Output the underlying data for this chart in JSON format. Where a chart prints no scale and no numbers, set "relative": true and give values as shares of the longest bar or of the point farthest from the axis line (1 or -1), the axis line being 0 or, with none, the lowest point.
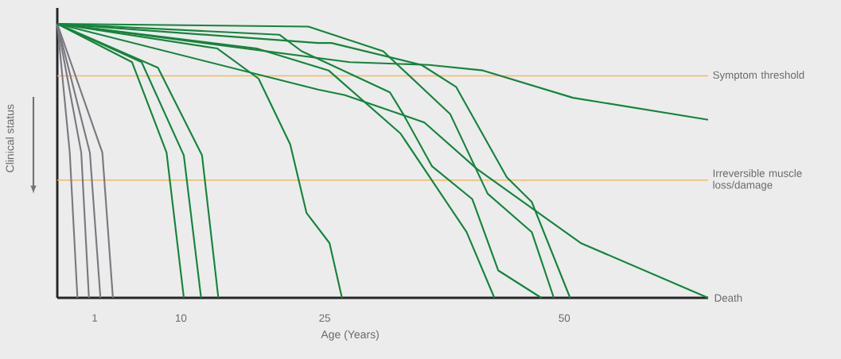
{
  "chart_data": {
    "type": "line",
    "relative": true,
    "xlabel": "Age (Years)",
    "ylabel": "Clinical status",
    "xlim": [
      -2.9,
      65
    ],
    "xticks": [
      1,
      10,
      25,
      50
    ],
    "ref_lines": [
      {
        "axis": "y",
        "value": 0.81,
        "label": "Symptom threshold",
        "color": "#f2b866"
      },
      {
        "axis": "y",
        "value": 0.43,
        "label": "Irreversible muscle loss/damage",
        "color": "#f2b866"
      }
    ],
    "annotations": [
      {
        "text": "Death",
        "x": 65,
        "y": 0
      }
    ],
    "series": [
      {
        "color": "#7b7880",
        "x": [
          -2.9,
          -1.6,
          -0.8
        ],
        "values": [
          1,
          0.53,
          0
        ]
      },
      {
        "color": "#7b7880",
        "x": [
          -2.9,
          -0.4,
          0.4
        ],
        "values": [
          1,
          0.53,
          0
        ]
      },
      {
        "color": "#7b7880",
        "x": [
          -2.9,
          0.5,
          1.6
        ],
        "values": [
          1,
          0.53,
          0
        ]
      },
      {
        "color": "#7b7880",
        "x": [
          -2.9,
          1.8,
          2.9
        ],
        "values": [
          1,
          0.53,
          0
        ]
      },
      {
        "color": "#14843c",
        "x": [
          -2.9,
          4.9,
          8.5,
          10.3
        ],
        "values": [
          1,
          0.86,
          0.53,
          0
        ]
      },
      {
        "color": "#14843c",
        "x": [
          -2.9,
          5.9,
          10.3,
          12.1
        ],
        "values": [
          1,
          0.86,
          0.52,
          0
        ]
      },
      {
        "color": "#14843c",
        "x": [
          -2.9,
          7.6,
          12.2,
          13.9
        ],
        "values": [
          1,
          0.84,
          0.52,
          0
        ]
      },
      {
        "color": "#14843c",
        "x": [
          -2.9,
          13.8,
          18.1,
          21.4,
          23.1,
          25.5,
          26.8
        ],
        "values": [
          1,
          0.91,
          0.8,
          0.56,
          0.31,
          0.2,
          0
        ]
      },
      {
        "color": "#14843c",
        "x": [
          -2.9,
          23.3,
          31.1,
          38.1,
          42.0,
          46.6,
          48.9
        ],
        "values": [
          1,
          0.99,
          0.9,
          0.67,
          0.38,
          0.24,
          0
        ]
      },
      {
        "color": "#14843c",
        "x": [
          -2.9,
          24.3,
          25.7,
          35.1,
          38.7,
          44.0,
          46.6,
          50.6
        ],
        "values": [
          1,
          0.93,
          0.93,
          0.85,
          0.77,
          0.44,
          0.35,
          0
        ]
      },
      {
        "color": "#14843c",
        "x": [
          -2.9,
          27.6,
          35.9,
          41.5,
          50.9,
          65
        ],
        "values": [
          1,
          0.86,
          0.85,
          0.83,
          0.73,
          0.65
        ]
      },
      {
        "color": "#14843c",
        "x": [
          -2.9,
          20.3,
          22.6,
          31.8,
          33.2,
          36.2,
          40.4,
          43.1,
          47.6
        ],
        "values": [
          1,
          0.96,
          0.9,
          0.75,
          0.67,
          0.48,
          0.36,
          0.1,
          0
        ]
      },
      {
        "color": "#14843c",
        "x": [
          -2.9,
          17.9,
          25.4,
          32.9,
          39.8,
          42.7
        ],
        "values": [
          1,
          0.91,
          0.83,
          0.6,
          0.24,
          0
        ]
      },
      {
        "color": "#14843c",
        "x": [
          -2.9,
          24.3,
          27.1,
          35.4,
          40.9,
          51.7,
          65
        ],
        "values": [
          1,
          0.76,
          0.74,
          0.64,
          0.47,
          0.2,
          0
        ]
      }
    ]
  }
}
